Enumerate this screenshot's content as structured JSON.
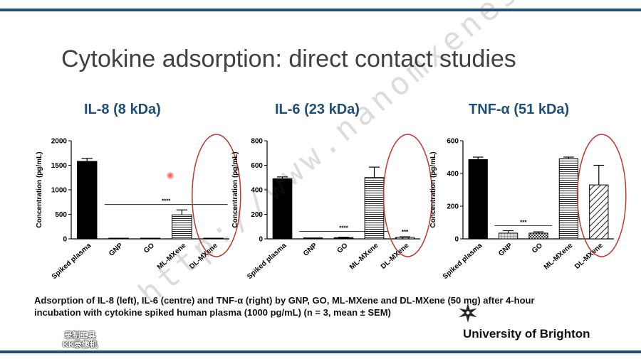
{
  "slide": {
    "title": "Cytokine adsorption: direct contact studies",
    "caption_line1": "Adsorption of IL-8 (left), IL-6 (centre) and TNF-α (right) by GNP, GO, ML-MXene and DL-MXene (50 mg) after 4-hour",
    "caption_line2": "incubation with cytokine spiked human plasma (1000 pg/mL) (n = 3, mean ± SEM)",
    "university": "University of Brighton",
    "watermark": "http://www.nanomxenes.com",
    "recorder_badge_line1": "录制工具",
    "recorder_badge_line2": "KK录像机",
    "colors": {
      "accent": "#1f4e79",
      "highlight_circle": "#c0392b"
    }
  },
  "chart_data": [
    {
      "type": "bar",
      "title": "IL-8 (8 kDa)",
      "ylabel": "Concentration (pg/mL)",
      "categories": [
        "Spiked plasma",
        "GNP",
        "GO",
        "ML-MXene",
        "DL-MXene"
      ],
      "values": [
        1580,
        5,
        5,
        490,
        5
      ],
      "errors": [
        60,
        0,
        0,
        100,
        0
      ],
      "ylim": [
        0,
        2000
      ],
      "yticks": [
        "0",
        "500",
        "1000",
        "1500",
        "2000"
      ],
      "significance": {
        "label": "****",
        "value": 700,
        "from": 1,
        "to": 4
      },
      "patterns": [
        "solid",
        "solid",
        "solid",
        "horizontal",
        "diagonal"
      ],
      "circled_category": "DL-MXene"
    },
    {
      "type": "bar",
      "title": "IL-6 (23 kDa)",
      "ylabel": "Concentration (pg/mL)",
      "categories": [
        "Spiked plasma",
        "GNP",
        "GO",
        "ML-MXene",
        "DL-MXene"
      ],
      "values": [
        490,
        8,
        10,
        500,
        12
      ],
      "errors": [
        15,
        0,
        4,
        85,
        5
      ],
      "ylim": [
        0,
        800
      ],
      "yticks": [
        "0",
        "200",
        "400",
        "600",
        "800"
      ],
      "significance": [
        {
          "label": "****",
          "value": 60,
          "from": 1,
          "to": 3
        },
        {
          "label": "***",
          "value": 30,
          "from": 4,
          "to": 4
        }
      ],
      "patterns": [
        "solid",
        "solid",
        "solid",
        "horizontal",
        "diagonal"
      ],
      "circled_category": "DL-MXene"
    },
    {
      "type": "bar",
      "title": "TNF-α (51 kDa)",
      "ylabel": "Concentration (pg/mL)",
      "categories": [
        "Spiked plasma",
        "GNP",
        "GO",
        "ML-MXene",
        "DL-MXene"
      ],
      "values": [
        485,
        35,
        35,
        490,
        330
      ],
      "errors": [
        15,
        15,
        8,
        10,
        120
      ],
      "ylim": [
        0,
        600
      ],
      "yticks": [
        "0",
        "200",
        "400",
        "600"
      ],
      "significance": {
        "label": "***",
        "value": 80,
        "from": 1,
        "to": 2
      },
      "patterns": [
        "solid",
        "grid",
        "checker",
        "horizontal",
        "diagonal"
      ],
      "circled_category": "DL-MXene"
    }
  ]
}
